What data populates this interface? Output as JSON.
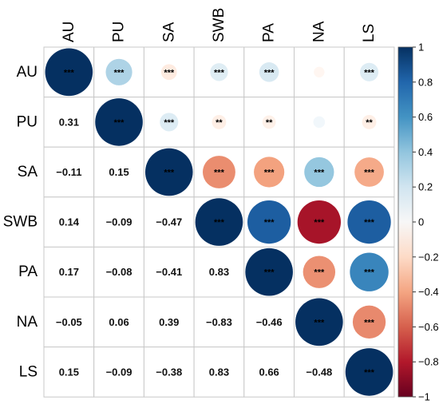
{
  "chart_data": {
    "type": "heatmap",
    "variables": [
      "AU",
      "PU",
      "SA",
      "SWB",
      "PA",
      "NA",
      "LS"
    ],
    "matrix": [
      [
        1,
        0.31,
        -0.11,
        0.14,
        0.17,
        -0.05,
        0.15
      ],
      [
        0.31,
        1,
        0.15,
        -0.09,
        -0.08,
        0.06,
        -0.09
      ],
      [
        -0.11,
        0.15,
        1,
        -0.47,
        -0.41,
        0.39,
        -0.38
      ],
      [
        0.14,
        -0.09,
        -0.47,
        1,
        0.83,
        -0.83,
        0.83
      ],
      [
        0.17,
        -0.08,
        -0.41,
        0.83,
        1,
        -0.46,
        0.66
      ],
      [
        -0.05,
        0.06,
        0.39,
        -0.83,
        -0.46,
        1,
        -0.48
      ],
      [
        0.15,
        -0.09,
        -0.38,
        0.83,
        0.66,
        -0.48,
        1
      ]
    ],
    "lower_labels": [
      [
        "",
        "",
        "",
        "",
        "",
        "",
        ""
      ],
      [
        "0.31",
        "",
        "",
        "",
        "",
        "",
        ""
      ],
      [
        "−0.11",
        "0.15",
        "",
        "",
        "",
        "",
        ""
      ],
      [
        "0.14",
        "−0.09",
        "−0.47",
        "",
        "",
        "",
        ""
      ],
      [
        "0.17",
        "−0.08",
        "−0.41",
        "0.83",
        "",
        "",
        ""
      ],
      [
        "−0.05",
        "0.06",
        "0.39",
        "−0.83",
        "−0.46",
        "",
        ""
      ],
      [
        "0.15",
        "−0.09",
        "−0.38",
        "0.83",
        "0.66",
        "−0.48",
        ""
      ]
    ],
    "significance": [
      [
        "***",
        "***",
        "***",
        "***",
        "***",
        "",
        "***"
      ],
      [
        "",
        "***",
        "***",
        "**",
        "**",
        "",
        "**"
      ],
      [
        "",
        "",
        "***",
        "***",
        "***",
        "***",
        "***"
      ],
      [
        "",
        "",
        "",
        "***",
        "***",
        "***",
        "***"
      ],
      [
        "",
        "",
        "",
        "",
        "***",
        "***",
        "***"
      ],
      [
        "",
        "",
        "",
        "",
        "",
        "***",
        "***"
      ],
      [
        "",
        "",
        "",
        "",
        "",
        "",
        "***"
      ]
    ],
    "colorbar": {
      "range": [
        -1,
        1
      ],
      "ticks": [
        "1",
        "0.8",
        "0.6",
        "0.4",
        "0.2",
        "0",
        "−0.2",
        "−0.4",
        "−0.6",
        "−0.8",
        "−1"
      ],
      "colors": [
        "#053061",
        "#2166ac",
        "#4393c3",
        "#92c5de",
        "#d1e5f0",
        "#ffffff",
        "#fddbc7",
        "#f4a582",
        "#d6604d",
        "#b2182b",
        "#67001f"
      ]
    }
  }
}
